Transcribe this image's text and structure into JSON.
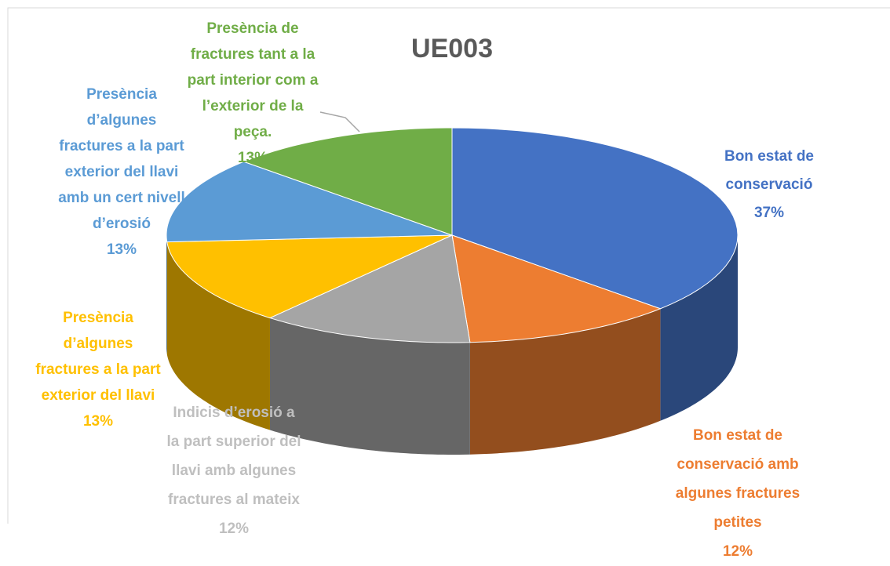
{
  "chart_data": {
    "type": "pie",
    "title": "UE003",
    "categories": [
      "Bon estat de\nconservació",
      "Bon estat de\nconservació amb\nalgunes fractures\npetites",
      "Indicis d’erosió a\nla part superior del\nllavi amb algunes\nfractures al mateix",
      "Presència\nd’algunes\nfractures a la part\nexterior del llavi",
      "Presència\nd’algunes\nfractures a la part\nexterior del llavi\namb un cert nivell\nd’erosió",
      "Presència de\nfractures tant a la\npart interior com a\nl’exterior de la\npeça."
    ],
    "values": [
      37,
      12,
      12,
      13,
      13,
      13
    ],
    "value_labels": [
      "37%",
      "12%",
      "12%",
      "13%",
      "13%",
      "13%"
    ],
    "colors": [
      "#4472c4",
      "#ed7d31",
      "#a5a5a5",
      "#ffc000",
      "#5b9bd5",
      "#70ad47"
    ]
  }
}
